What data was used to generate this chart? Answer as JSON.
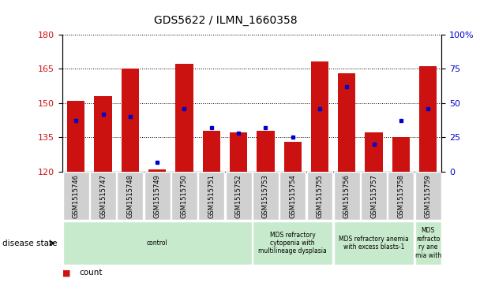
{
  "title": "GDS5622 / ILMN_1660358",
  "samples": [
    "GSM1515746",
    "GSM1515747",
    "GSM1515748",
    "GSM1515749",
    "GSM1515750",
    "GSM1515751",
    "GSM1515752",
    "GSM1515753",
    "GSM1515754",
    "GSM1515755",
    "GSM1515756",
    "GSM1515757",
    "GSM1515758",
    "GSM1515759"
  ],
  "count_values": [
    151,
    153,
    165,
    121,
    167,
    138,
    137,
    138,
    133,
    168,
    163,
    137,
    135,
    166
  ],
  "percentile_values": [
    37,
    42,
    40,
    7,
    46,
    32,
    28,
    32,
    25,
    46,
    62,
    20,
    37,
    46
  ],
  "ylim_left": [
    120,
    180
  ],
  "ylim_right": [
    0,
    100
  ],
  "yticks_left": [
    120,
    135,
    150,
    165,
    180
  ],
  "yticks_right": [
    0,
    25,
    50,
    75,
    100
  ],
  "bar_color": "#cc1111",
  "dot_color": "#0000cc",
  "bar_bottom": 120,
  "group_boundaries": [
    {
      "start": 0,
      "end": 6,
      "label": "control",
      "color": "#c8eacc"
    },
    {
      "start": 7,
      "end": 9,
      "label": "MDS refractory\ncytopenia with\nmultilineage dysplasia",
      "color": "#c8eacc"
    },
    {
      "start": 10,
      "end": 12,
      "label": "MDS refractory anemia\nwith excess blasts-1",
      "color": "#c8eacc"
    },
    {
      "start": 13,
      "end": 13,
      "label": "MDS\nrefracto\nry ane\nmia with",
      "color": "#c8eacc"
    }
  ],
  "bar_width": 0.65,
  "tick_label_color_left": "#cc1111",
  "tick_label_color_right": "#0000cc"
}
